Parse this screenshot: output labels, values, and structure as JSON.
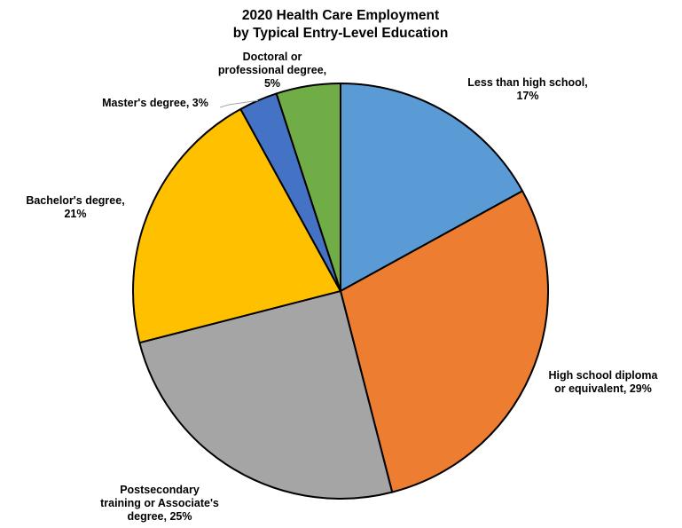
{
  "chart_data": {
    "type": "pie",
    "title": [
      "2020 Health Care Employment",
      "by Typical Entry-Level Education"
    ],
    "legend": "none",
    "slices": [
      {
        "category": "Less than high school",
        "value": 17,
        "label_lines": [
          "Less than high school,",
          "17%"
        ],
        "color": "#5B9BD5"
      },
      {
        "category": "High school diploma or equivalent",
        "value": 29,
        "label_lines": [
          "High school diploma",
          "or equivalent, 29%"
        ],
        "color": "#ED7D31"
      },
      {
        "category": "Postsecondary training or Associate's degree",
        "value": 25,
        "label_lines": [
          "Postsecondary",
          "training or Associate's",
          "degree, 25%"
        ],
        "color": "#A5A5A5"
      },
      {
        "category": "Bachelor's degree",
        "value": 21,
        "label_lines": [
          "Bachelor's degree,",
          "21%"
        ],
        "color": "#FFC000"
      },
      {
        "category": "Master's degree",
        "value": 3,
        "label_lines": [
          "Master's degree, 3%"
        ],
        "color": "#4472C4"
      },
      {
        "category": "Doctoral or professional degree",
        "value": 5,
        "label_lines": [
          "Doctoral or",
          "professional degree,",
          "5%"
        ],
        "color": "#70AD47"
      }
    ]
  }
}
